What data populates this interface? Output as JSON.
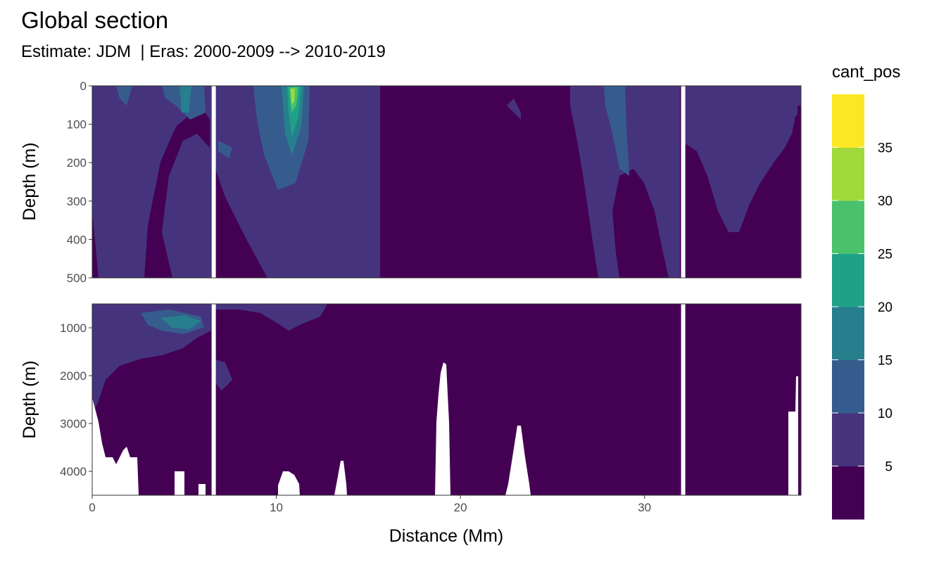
{
  "chart_data": {
    "type": "heatmap",
    "title": "Global section",
    "subtitle": "Estimate: JDM  | Eras: 2000-2009 --> 2010-2019",
    "xlabel": "Distance (Mm)",
    "ylabel": "Depth (m)",
    "legend_title": "cant_pos",
    "legend_position": "right",
    "grid": true,
    "xlim": [
      0,
      38.5
    ],
    "x_ticks": [
      0,
      10,
      20,
      30
    ],
    "x_tick_labels": [
      "0",
      "10",
      "20",
      "30"
    ],
    "panels": [
      {
        "ylim": [
          0,
          500
        ],
        "y_ticks": [
          0,
          100,
          200,
          300,
          400,
          500
        ],
        "y_tick_labels": [
          "0",
          "100",
          "200",
          "300",
          "400",
          "500"
        ]
      },
      {
        "ylim": [
          500,
          4500
        ],
        "y_ticks": [
          1000,
          2000,
          3000,
          4000
        ],
        "y_tick_labels": [
          "1000",
          "2000",
          "3000",
          "4000"
        ]
      }
    ],
    "levels": [
      0,
      5,
      10,
      15,
      20,
      25,
      30,
      35,
      40
    ],
    "legend_labels": [
      "5",
      "10",
      "15",
      "20",
      "25",
      "30",
      "35"
    ],
    "colors": [
      "#440154",
      "#46337E",
      "#365C8D",
      "#277F8E",
      "#1FA187",
      "#4AC16D",
      "#9FDA3A",
      "#FDE725"
    ],
    "section_gaps_x": [
      6.6,
      32.1
    ]
  }
}
